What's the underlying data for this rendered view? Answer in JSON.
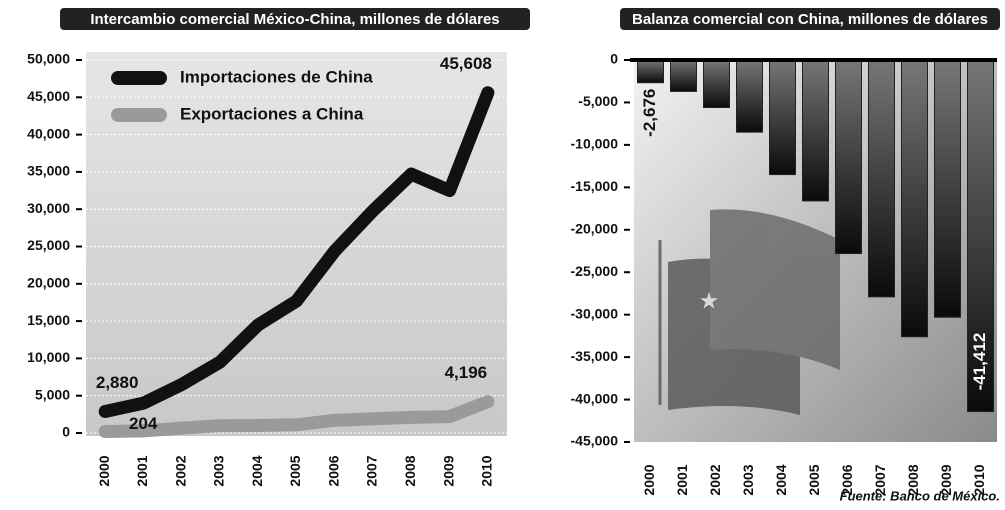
{
  "chart_data": [
    {
      "type": "line",
      "title": "Intercambio comercial México-China, millones de dólares",
      "categories": [
        "2000",
        "2001",
        "2002",
        "2003",
        "2004",
        "2005",
        "2006",
        "2007",
        "2008",
        "2009",
        "2010"
      ],
      "series": [
        {
          "name": "Importaciones de China",
          "color": "#111111",
          "values": [
            2880,
            4000,
            6500,
            9500,
            14500,
            17700,
            24400,
            29800,
            34700,
            32500,
            45608
          ],
          "value_labels": [
            "2,880",
            null,
            null,
            null,
            null,
            null,
            null,
            null,
            null,
            null,
            "45,608"
          ]
        },
        {
          "name": "Exportaciones a China",
          "color": "#9a9a9a",
          "values": [
            204,
            280,
            650,
            980,
            1000,
            1100,
            1700,
            1900,
            2100,
            2200,
            4196
          ],
          "value_labels": [
            "204",
            null,
            null,
            null,
            null,
            null,
            null,
            null,
            null,
            null,
            "4,196"
          ]
        }
      ],
      "ylim": [
        0,
        50000
      ],
      "yticks": [
        0,
        {
          "value": 5000,
          "label": "5,000"
        },
        {
          "value": 10000,
          "label": "10,000"
        },
        {
          "value": 15000,
          "label": "15,000"
        },
        {
          "value": 20000,
          "label": "20,000"
        },
        {
          "value": 25000,
          "label": "25,000"
        },
        {
          "value": 30000,
          "label": "30,000"
        },
        {
          "value": 35000,
          "label": "35,000"
        },
        {
          "value": 40000,
          "label": "40,000"
        },
        {
          "value": 45000,
          "label": "45,000"
        },
        {
          "value": 50000,
          "label": "50,000"
        }
      ],
      "grid": true,
      "legend": "upper left"
    },
    {
      "type": "bar",
      "title": "Balanza comercial con China, millones de dólares",
      "categories": [
        "2000",
        "2001",
        "2002",
        "2003",
        "2004",
        "2005",
        "2006",
        "2007",
        "2008",
        "2009",
        "2010"
      ],
      "values": [
        -2676,
        -3700,
        -5600,
        -8500,
        -13500,
        -16600,
        -22800,
        -27900,
        -32600,
        -30300,
        -41412
      ],
      "value_labels": [
        "-2,676",
        null,
        null,
        null,
        null,
        null,
        null,
        null,
        null,
        null,
        "-41,412"
      ],
      "color": "#222222",
      "ylim": [
        -45000,
        0
      ],
      "yticks": [
        {
          "value": -45000,
          "label": "-45,000"
        },
        {
          "value": -40000,
          "label": "-40,000"
        },
        {
          "value": -35000,
          "label": "-35,000"
        },
        {
          "value": -30000,
          "label": "-30,000"
        },
        {
          "value": -25000,
          "label": "-25,000"
        },
        {
          "value": -20000,
          "label": "-20,000"
        },
        {
          "value": -15000,
          "label": "-15,000"
        },
        {
          "value": -10000,
          "label": "-10,000"
        },
        {
          "value": -5000,
          "label": "-5,000"
        },
        0
      ],
      "grid": false,
      "source": "Fuente: Banco de México."
    }
  ]
}
